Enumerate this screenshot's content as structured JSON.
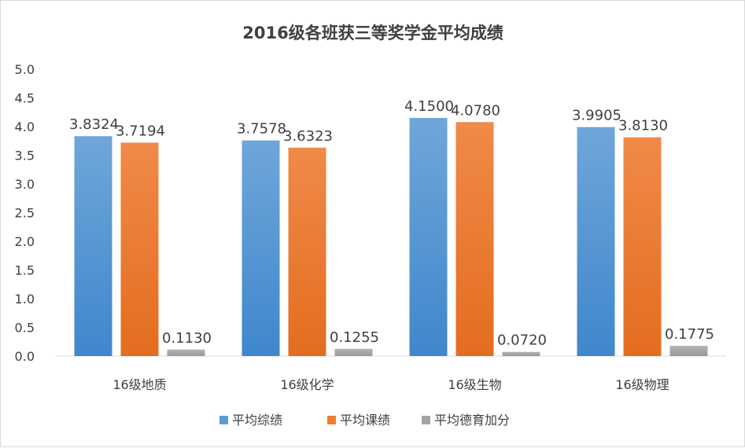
{
  "chart_data": {
    "type": "bar",
    "title": "2016级各班获三等奖学金平均成绩",
    "categories": [
      "16级地质",
      "16级化学",
      "16级生物",
      "16级物理"
    ],
    "series": [
      {
        "name": "平均综绩",
        "values": [
          3.8324,
          3.7578,
          4.15,
          3.9905
        ],
        "labels": [
          "3.8324",
          "3.7578",
          "4.1500",
          "3.9905"
        ],
        "color": "#5b9bd5"
      },
      {
        "name": "平均课绩",
        "values": [
          3.7194,
          3.6323,
          4.078,
          3.813
        ],
        "labels": [
          "3.7194",
          "3.6323",
          "4.0780",
          "3.8130"
        ],
        "color": "#ed7d31"
      },
      {
        "name": "平均德育加分",
        "values": [
          0.113,
          0.1255,
          0.072,
          0.1775
        ],
        "labels": [
          "0.1130",
          "0.1255",
          "0.0720",
          "0.1775"
        ],
        "color": "#a5a5a5"
      }
    ],
    "ylim": [
      0,
      5
    ],
    "yticks": [
      "0.0",
      "0.5",
      "1.0",
      "1.5",
      "2.0",
      "2.5",
      "3.0",
      "3.5",
      "4.0",
      "4.5",
      "5.0"
    ],
    "grid": false,
    "legend": "bottom"
  }
}
